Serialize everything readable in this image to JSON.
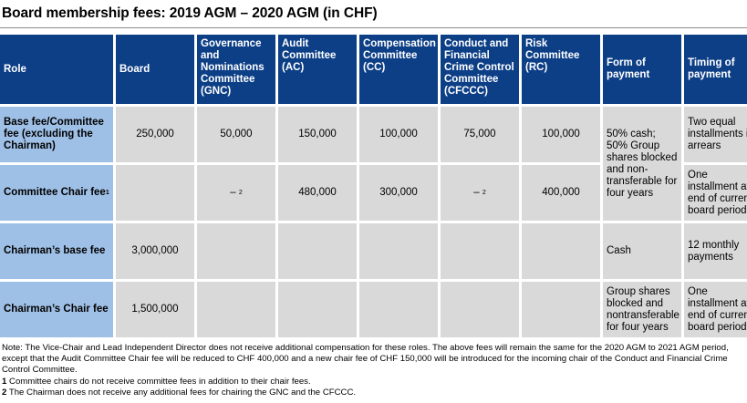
{
  "title": "Board membership fees: 2019 AGM – 2020 AGM (in CHF)",
  "headers": {
    "role": "Role",
    "board": "Board",
    "gnc": "Governance and Nominations Committee (GNC)",
    "ac": "Audit Committee (AC)",
    "cc": "Compensation Committee (CC)",
    "cfccc": "Conduct and Financial Crime Control Committee (CFCCC)",
    "rc": "Risk Committee (RC)",
    "payment": "Form of payment",
    "timing": "Timing of payment"
  },
  "rows": [
    {
      "role": "Base fee/Committee fee (excluding the Chairman)",
      "board": "250,000",
      "gnc": "50,000",
      "ac": "150,000",
      "cc": "100,000",
      "cfccc": "75,000",
      "rc": "100,000",
      "timing": "Two equal installments in arrears"
    },
    {
      "role": "Committee Chair fee",
      "role_sup": "1",
      "board": "",
      "gnc": "–",
      "gnc_sup": "2",
      "ac": "480,000",
      "cc": "300,000",
      "cfccc": "–",
      "cfccc_sup": "2",
      "rc": "400,000",
      "timing": "One installment at end of current board period"
    },
    {
      "role": "Chairman’s base fee",
      "board": "3,000,000",
      "payment": "Cash",
      "timing": "12 monthly payments"
    },
    {
      "role": "Chairman’s Chair fee",
      "board": "1,500,000",
      "payment": "Group shares blocked and nontransferable for four years",
      "timing": "One installment at end of current board period"
    }
  ],
  "merged_payment": "50% cash; 50% Group shares blocked and non-transferable for four years",
  "notes": {
    "main": "Note: The Vice-Chair and Lead Independent Director does not receive additional compensation for these roles. The above fees will remain the same for the 2020 AGM to 2021 AGM period, except that the Audit Committee Chair fee will be reduced to CHF 400,000 and a new chair fee of CHF 150,000 will be introduced for the incoming chair of the Conduct and Financial Crime Control Committee.",
    "n1_num": "1",
    "n1": "Committee chairs do not receive committee fees in addition to their chair fees.",
    "n2_num": "2",
    "n2": "The Chairman does not receive any additional fees for chairing the GNC and the CFCCC."
  }
}
